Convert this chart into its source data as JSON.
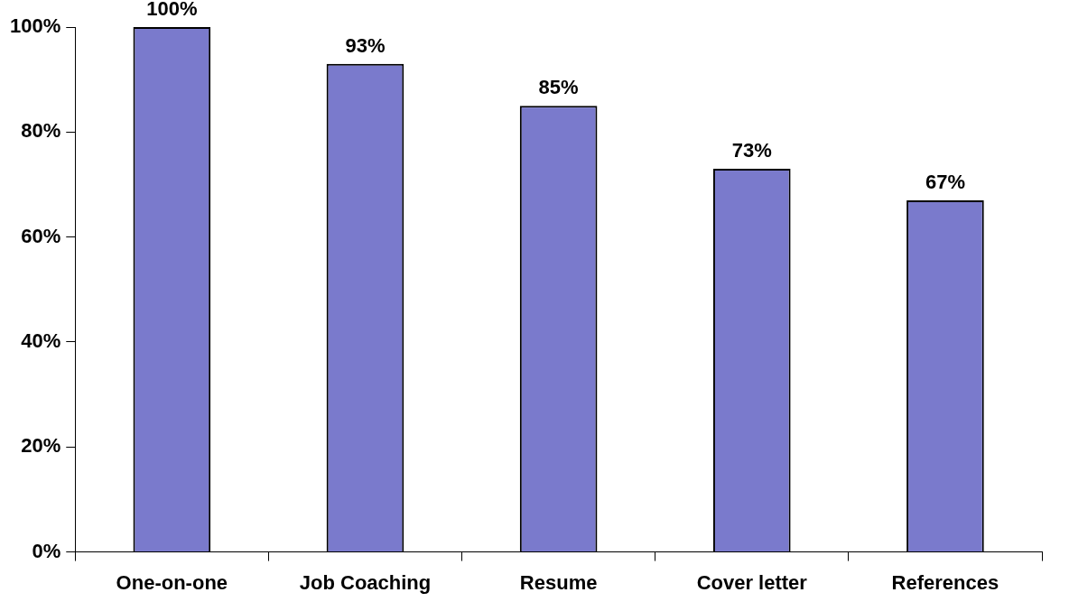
{
  "chart_data": {
    "type": "bar",
    "categories": [
      "One-on-one",
      "Job Coaching",
      "Resume",
      "Cover letter",
      "References"
    ],
    "values": [
      100,
      93,
      85,
      73,
      67
    ],
    "value_labels": [
      "100%",
      "93%",
      "85%",
      "73%",
      "67%"
    ],
    "color": "#7a7acc",
    "ylim": [
      0,
      100
    ],
    "yticks": [
      {
        "value": 0,
        "label": "0%"
      },
      {
        "value": 20,
        "label": "20%"
      },
      {
        "value": 40,
        "label": "40%"
      },
      {
        "value": 60,
        "label": "60%"
      },
      {
        "value": 80,
        "label": "80%"
      },
      {
        "value": 100,
        "label": "100%"
      }
    ],
    "grid": false,
    "legend": false
  }
}
